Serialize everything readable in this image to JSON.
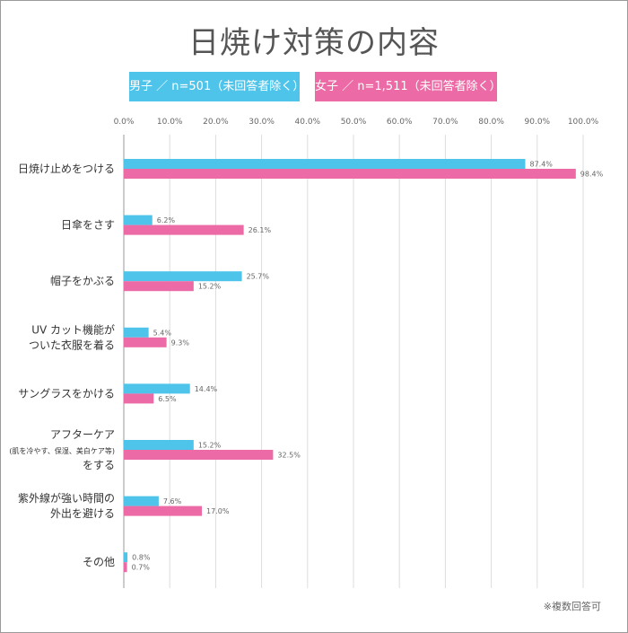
{
  "chart_data": {
    "type": "bar",
    "orientation": "horizontal",
    "title": "日焼け対策の内容",
    "categories": [
      [
        "日焼け止めをつける"
      ],
      [
        "日傘をさす"
      ],
      [
        "帽子をかぶる"
      ],
      [
        "UV カット機能が",
        "ついた衣服を着る"
      ],
      [
        "サングラスをかける"
      ],
      [
        "アフターケア",
        "(肌を冷やす、保湿、美白ケア等)",
        "をする"
      ],
      [
        "紫外線が強い時間の",
        "外出を避ける"
      ],
      [
        "その他"
      ]
    ],
    "series": [
      {
        "name": "男子 ／ n=501（未回答者除く）",
        "color": "#4ec4ea",
        "values": [
          87.4,
          6.2,
          25.7,
          5.4,
          14.4,
          15.2,
          7.6,
          0.8
        ],
        "labels": [
          "87.4%",
          "6.2%",
          "25.7%",
          "5.4%",
          "14.4%",
          "15.2%",
          "7.6%",
          "0.8%"
        ]
      },
      {
        "name": "女子 ／ n=1,511（未回答者除く）",
        "color": "#ec6aa5",
        "values": [
          98.4,
          26.1,
          15.2,
          9.3,
          6.5,
          32.5,
          17.0,
          0.7
        ],
        "labels": [
          "98.4%",
          "26.1%",
          "15.2%",
          "9.3%",
          "6.5%",
          "32.5%",
          "17.0%",
          "0.7%"
        ]
      }
    ],
    "xlim": [
      0,
      100
    ],
    "x_ticks": [
      "0.0%",
      "10.0%",
      "20.0%",
      "30.0%",
      "40.0%",
      "50.0%",
      "60.0%",
      "70.0%",
      "80.0%",
      "90.0%",
      "100.0%"
    ],
    "grid": true,
    "legend_position": "top",
    "note": "※複数回答可"
  }
}
